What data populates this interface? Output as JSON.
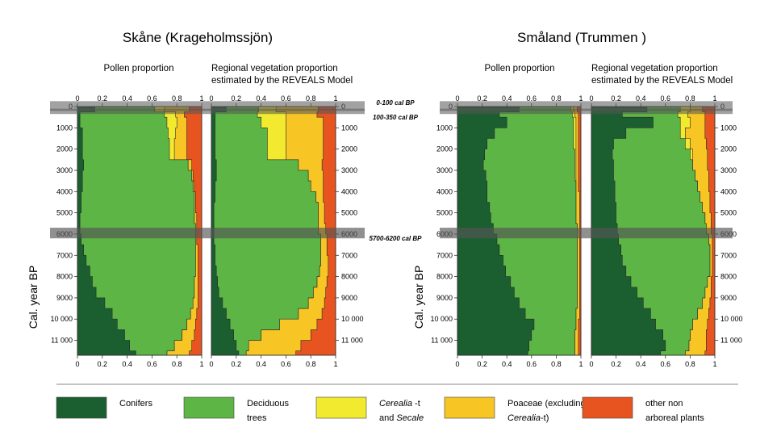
{
  "chart_data": {
    "type": "area",
    "stacking": "cumulative-proportion",
    "y_axis": {
      "label": "Cal. year BP",
      "range": [
        0,
        11700
      ],
      "reversed": true,
      "ticks": [
        0,
        1000,
        2000,
        3000,
        4000,
        5000,
        6000,
        7000,
        8000,
        9000,
        10000,
        11000
      ],
      "tick_labels": [
        "0",
        "1000",
        "2000",
        "3000",
        "4000",
        "5000",
        "6000",
        "7000",
        "8000",
        "9000",
        "10 000",
        "11 000"
      ]
    },
    "x_axis": {
      "range": [
        0,
        1
      ],
      "left_ticks": [
        "0",
        "0.2",
        "0.4",
        "0.6",
        "0.8",
        "1"
      ],
      "right_ticks": [
        "0",
        "0.2",
        "0.4",
        "0.6",
        "0.8",
        "1"
      ]
    },
    "regions": [
      {
        "title": "Skåne (Krageholmssjön)",
        "key": "skane"
      },
      {
        "title": "Småland (Trummen )",
        "key": "smaland"
      }
    ],
    "panel_titles": {
      "pollen": "Pollen proportion",
      "reveals_line1": "Regional vegetation proportion",
      "reveals_line2": "estimated by the REVEALS Model"
    },
    "highlight_bands": [
      {
        "label": "0-100 cal BP",
        "from": 0,
        "to": 100
      },
      {
        "label": "100-350 cal BP",
        "from": 100,
        "to": 350
      },
      {
        "label": "5700-6200 cal BP",
        "from": 5700,
        "to": 6200
      }
    ],
    "categories": [
      "Conifers",
      "Deciduous trees",
      "Cerealia-t and Secale",
      "Poaceae (excluding Cerealia-t)",
      "other non arboreal plants"
    ],
    "colors": [
      "#1b5e30",
      "#5db545",
      "#f2ea2e",
      "#f7c524",
      "#e8541f"
    ],
    "years": [
      0,
      250,
      500,
      1000,
      1500,
      2000,
      2500,
      3000,
      3500,
      4000,
      4500,
      5000,
      5500,
      6000,
      6500,
      7000,
      7500,
      8000,
      8500,
      9000,
      9500,
      10000,
      10500,
      11000,
      11500
    ],
    "panels": [
      {
        "region": "skane",
        "kind": "pollen",
        "cumulative": [
          [
            0.14,
            0.02,
            0.02,
            0.04,
            0.04,
            0.04,
            0.05,
            0.04,
            0.04,
            0.03,
            0.03,
            0.02,
            0.02,
            0.03,
            0.05,
            0.07,
            0.1,
            0.12,
            0.15,
            0.22,
            0.28,
            0.32,
            0.38,
            0.42,
            0.47
          ],
          [
            0.62,
            0.7,
            0.72,
            0.73,
            0.74,
            0.74,
            0.89,
            0.92,
            0.93,
            0.94,
            0.94,
            0.94,
            0.95,
            0.95,
            0.95,
            0.95,
            0.95,
            0.94,
            0.94,
            0.93,
            0.91,
            0.88,
            0.84,
            0.78,
            0.72
          ],
          [
            0.7,
            0.79,
            0.8,
            0.79,
            0.78,
            0.78,
            0.89,
            0.92,
            0.93,
            0.94,
            0.94,
            0.94,
            0.95,
            0.95,
            0.95,
            0.95,
            0.95,
            0.94,
            0.94,
            0.93,
            0.91,
            0.88,
            0.84,
            0.78,
            0.72
          ],
          [
            0.9,
            0.86,
            0.88,
            0.88,
            0.88,
            0.88,
            0.92,
            0.93,
            0.94,
            0.95,
            0.95,
            0.96,
            0.96,
            0.96,
            0.97,
            0.97,
            0.97,
            0.97,
            0.97,
            0.97,
            0.96,
            0.95,
            0.94,
            0.92,
            0.9
          ],
          [
            1,
            1,
            1,
            1,
            1,
            1,
            1,
            1,
            1,
            1,
            1,
            1,
            1,
            1,
            1,
            1,
            1,
            1,
            1,
            1,
            1,
            1,
            1,
            1,
            1
          ]
        ]
      },
      {
        "region": "skane",
        "kind": "reveals",
        "cumulative": [
          [
            0.12,
            0.03,
            0.03,
            0.03,
            0.03,
            0.03,
            0.04,
            0.04,
            0.03,
            0.03,
            0.02,
            0.02,
            0.02,
            0.02,
            0.03,
            0.03,
            0.04,
            0.05,
            0.06,
            0.09,
            0.12,
            0.15,
            0.18,
            0.2,
            0.22
          ],
          [
            0.38,
            0.37,
            0.4,
            0.45,
            0.45,
            0.45,
            0.7,
            0.78,
            0.8,
            0.84,
            0.86,
            0.86,
            0.86,
            0.88,
            0.88,
            0.88,
            0.87,
            0.85,
            0.82,
            0.78,
            0.7,
            0.55,
            0.4,
            0.3,
            0.28
          ],
          [
            0.52,
            0.6,
            0.6,
            0.6,
            0.6,
            0.6,
            0.7,
            0.78,
            0.8,
            0.84,
            0.86,
            0.86,
            0.86,
            0.88,
            0.88,
            0.88,
            0.87,
            0.85,
            0.82,
            0.78,
            0.7,
            0.55,
            0.4,
            0.3,
            0.28
          ],
          [
            0.86,
            0.85,
            0.9,
            0.9,
            0.9,
            0.9,
            0.89,
            0.9,
            0.9,
            0.9,
            0.91,
            0.91,
            0.92,
            0.93,
            0.93,
            0.94,
            0.94,
            0.93,
            0.92,
            0.91,
            0.89,
            0.85,
            0.8,
            0.72,
            0.68
          ],
          [
            1,
            1,
            1,
            1,
            1,
            1,
            1,
            1,
            1,
            1,
            1,
            1,
            1,
            1,
            1,
            1,
            1,
            1,
            1,
            1,
            1,
            1,
            1,
            1,
            1
          ]
        ]
      },
      {
        "region": "smaland",
        "kind": "pollen",
        "cumulative": [
          [
            0.5,
            0.34,
            0.4,
            0.3,
            0.24,
            0.22,
            0.21,
            0.23,
            0.24,
            0.24,
            0.26,
            0.27,
            0.29,
            0.32,
            0.34,
            0.37,
            0.39,
            0.43,
            0.46,
            0.5,
            0.55,
            0.62,
            0.6,
            0.58,
            0.57
          ],
          [
            0.92,
            0.93,
            0.94,
            0.94,
            0.94,
            0.95,
            0.95,
            0.95,
            0.96,
            0.96,
            0.96,
            0.96,
            0.97,
            0.97,
            0.97,
            0.97,
            0.97,
            0.97,
            0.97,
            0.97,
            0.96,
            0.96,
            0.95,
            0.95,
            0.95
          ],
          [
            0.94,
            0.95,
            0.96,
            0.96,
            0.96,
            0.96,
            0.96,
            0.96,
            0.96,
            0.96,
            0.96,
            0.96,
            0.97,
            0.97,
            0.97,
            0.97,
            0.97,
            0.97,
            0.97,
            0.97,
            0.96,
            0.96,
            0.95,
            0.95,
            0.95
          ],
          [
            0.97,
            0.98,
            0.98,
            0.98,
            0.98,
            0.98,
            0.98,
            0.98,
            0.98,
            0.99,
            0.99,
            0.99,
            0.99,
            0.99,
            0.99,
            0.99,
            0.99,
            0.99,
            0.99,
            0.99,
            0.99,
            0.98,
            0.98,
            0.98,
            0.98
          ],
          [
            1,
            1,
            1,
            1,
            1,
            1,
            1,
            1,
            1,
            1,
            1,
            1,
            1,
            1,
            1,
            1,
            1,
            1,
            1,
            1,
            1,
            1,
            1,
            1,
            1
          ]
        ]
      },
      {
        "region": "smaland",
        "kind": "reveals",
        "cumulative": [
          [
            0.45,
            0.25,
            0.5,
            0.28,
            0.18,
            0.17,
            0.18,
            0.18,
            0.19,
            0.19,
            0.2,
            0.2,
            0.21,
            0.22,
            0.24,
            0.25,
            0.28,
            0.32,
            0.37,
            0.42,
            0.48,
            0.52,
            0.58,
            0.6,
            0.56
          ],
          [
            0.72,
            0.7,
            0.72,
            0.72,
            0.76,
            0.8,
            0.82,
            0.84,
            0.86,
            0.88,
            0.9,
            0.92,
            0.93,
            0.95,
            0.96,
            0.96,
            0.96,
            0.94,
            0.92,
            0.9,
            0.86,
            0.82,
            0.8,
            0.79,
            0.76
          ],
          [
            0.8,
            0.78,
            0.8,
            0.76,
            0.8,
            0.82,
            0.82,
            0.84,
            0.86,
            0.88,
            0.9,
            0.92,
            0.93,
            0.95,
            0.96,
            0.96,
            0.96,
            0.94,
            0.92,
            0.9,
            0.86,
            0.82,
            0.8,
            0.79,
            0.76
          ],
          [
            0.9,
            0.92,
            0.92,
            0.92,
            0.93,
            0.94,
            0.94,
            0.95,
            0.95,
            0.96,
            0.96,
            0.97,
            0.97,
            0.98,
            0.98,
            0.98,
            0.98,
            0.97,
            0.97,
            0.96,
            0.95,
            0.94,
            0.93,
            0.93,
            0.92
          ],
          [
            1,
            1,
            1,
            1,
            1,
            1,
            1,
            1,
            1,
            1,
            1,
            1,
            1,
            1,
            1,
            1,
            1,
            1,
            1,
            1,
            1,
            1,
            1,
            1,
            1
          ]
        ]
      }
    ],
    "legend": [
      {
        "label_line1": "Conifers",
        "label_line2": "",
        "color_key": 0
      },
      {
        "label_line1": "Deciduous",
        "label_line2": "trees",
        "color_key": 1
      },
      {
        "label_line1": "Cerealia -t",
        "label_line2": "and Secale",
        "color_key": 2
      },
      {
        "label_line1": "Poaceae (excluding",
        "label_line2": "Cerealia-t)",
        "color_key": 3
      },
      {
        "label_line1": "other non",
        "label_line2": "arboreal plants",
        "color_key": 4
      }
    ]
  }
}
